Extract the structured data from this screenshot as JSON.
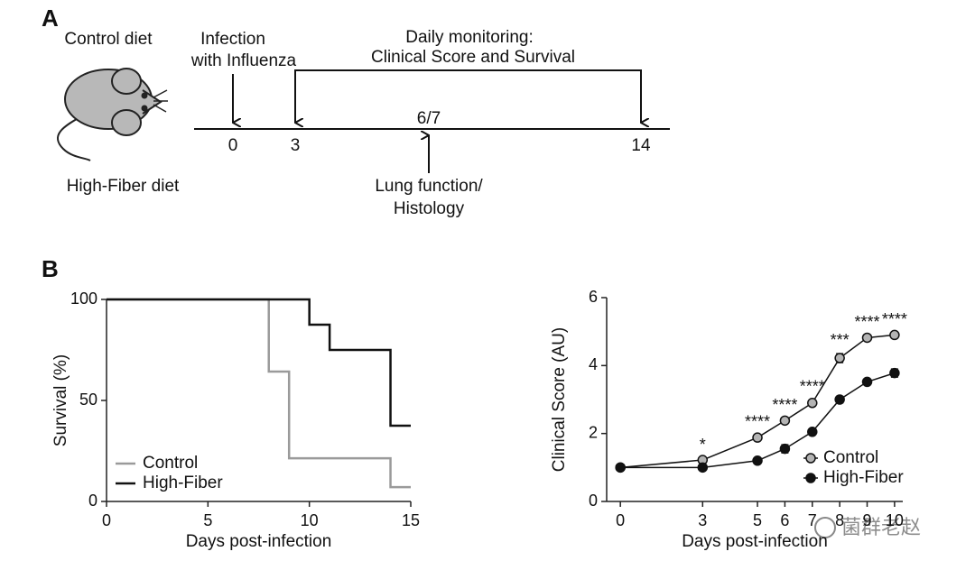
{
  "panel_a": {
    "label": "A",
    "control_diet": "Control diet",
    "high_fiber_diet": "High-Fiber diet",
    "infection": [
      "Infection",
      "with Influenza"
    ],
    "monitoring": [
      "Daily monitoring:",
      "Clinical Score and Survival"
    ],
    "timeline": [
      "0",
      "3",
      "6/7",
      "14"
    ],
    "lung": [
      "Lung function/",
      "Histology"
    ]
  },
  "panel_b_label": "B",
  "watermark": "菌群老赵",
  "chart_data": [
    {
      "type": "line",
      "step": true,
      "x_label": "Days post-infection",
      "y_label": "Survival (%)",
      "xlim": [
        0,
        15
      ],
      "xticks": [
        0,
        5,
        10,
        15
      ],
      "ylim": [
        0,
        100
      ],
      "yticks": [
        0,
        50,
        100
      ],
      "legend": "lower left",
      "series": [
        {
          "name": "Control",
          "color": "#9a9a9a",
          "x": [
            0,
            8,
            9,
            14,
            15
          ],
          "values": [
            100,
            64.3,
            21.4,
            7.1,
            7.1
          ]
        },
        {
          "name": "High-Fiber",
          "color": "#111111",
          "x": [
            0,
            10,
            11,
            14,
            15
          ],
          "values": [
            100,
            87.5,
            75,
            37.5,
            37.5
          ]
        }
      ]
    },
    {
      "type": "line",
      "markers": true,
      "x_label": "Days post-infection",
      "y_label": "Clinical Score (AU)",
      "x": [
        0,
        3,
        5,
        6,
        7,
        8,
        9,
        10
      ],
      "xlim": [
        -0.5,
        10.3
      ],
      "xticks": [
        0,
        3,
        5,
        6,
        7,
        8,
        9,
        10
      ],
      "ylim": [
        0,
        6
      ],
      "yticks": [
        0,
        2,
        4,
        6
      ],
      "legend": "lower right",
      "series": [
        {
          "name": "Control",
          "color": "#b4b4b4",
          "values": [
            1.0,
            1.22,
            1.88,
            2.38,
            2.9,
            4.22,
            4.82,
            4.9
          ],
          "errors": [
            0.04,
            0.05,
            0.06,
            0.06,
            0.08,
            0.13,
            0.06,
            0.06
          ]
        },
        {
          "name": "High-Fiber",
          "color": "#111111",
          "values": [
            1.0,
            1.0,
            1.2,
            1.55,
            2.05,
            3.0,
            3.52,
            3.78
          ],
          "errors": [
            0.04,
            0.04,
            0.06,
            0.12,
            0.08,
            0.1,
            0.05,
            0.12
          ]
        }
      ],
      "annotations": [
        {
          "x": 3,
          "text": "*"
        },
        {
          "x": 5,
          "text": "****"
        },
        {
          "x": 6,
          "text": "****"
        },
        {
          "x": 7,
          "text": "****"
        },
        {
          "x": 8,
          "text": "***"
        },
        {
          "x": 9,
          "text": "****"
        },
        {
          "x": 10,
          "text": "****"
        }
      ]
    }
  ]
}
